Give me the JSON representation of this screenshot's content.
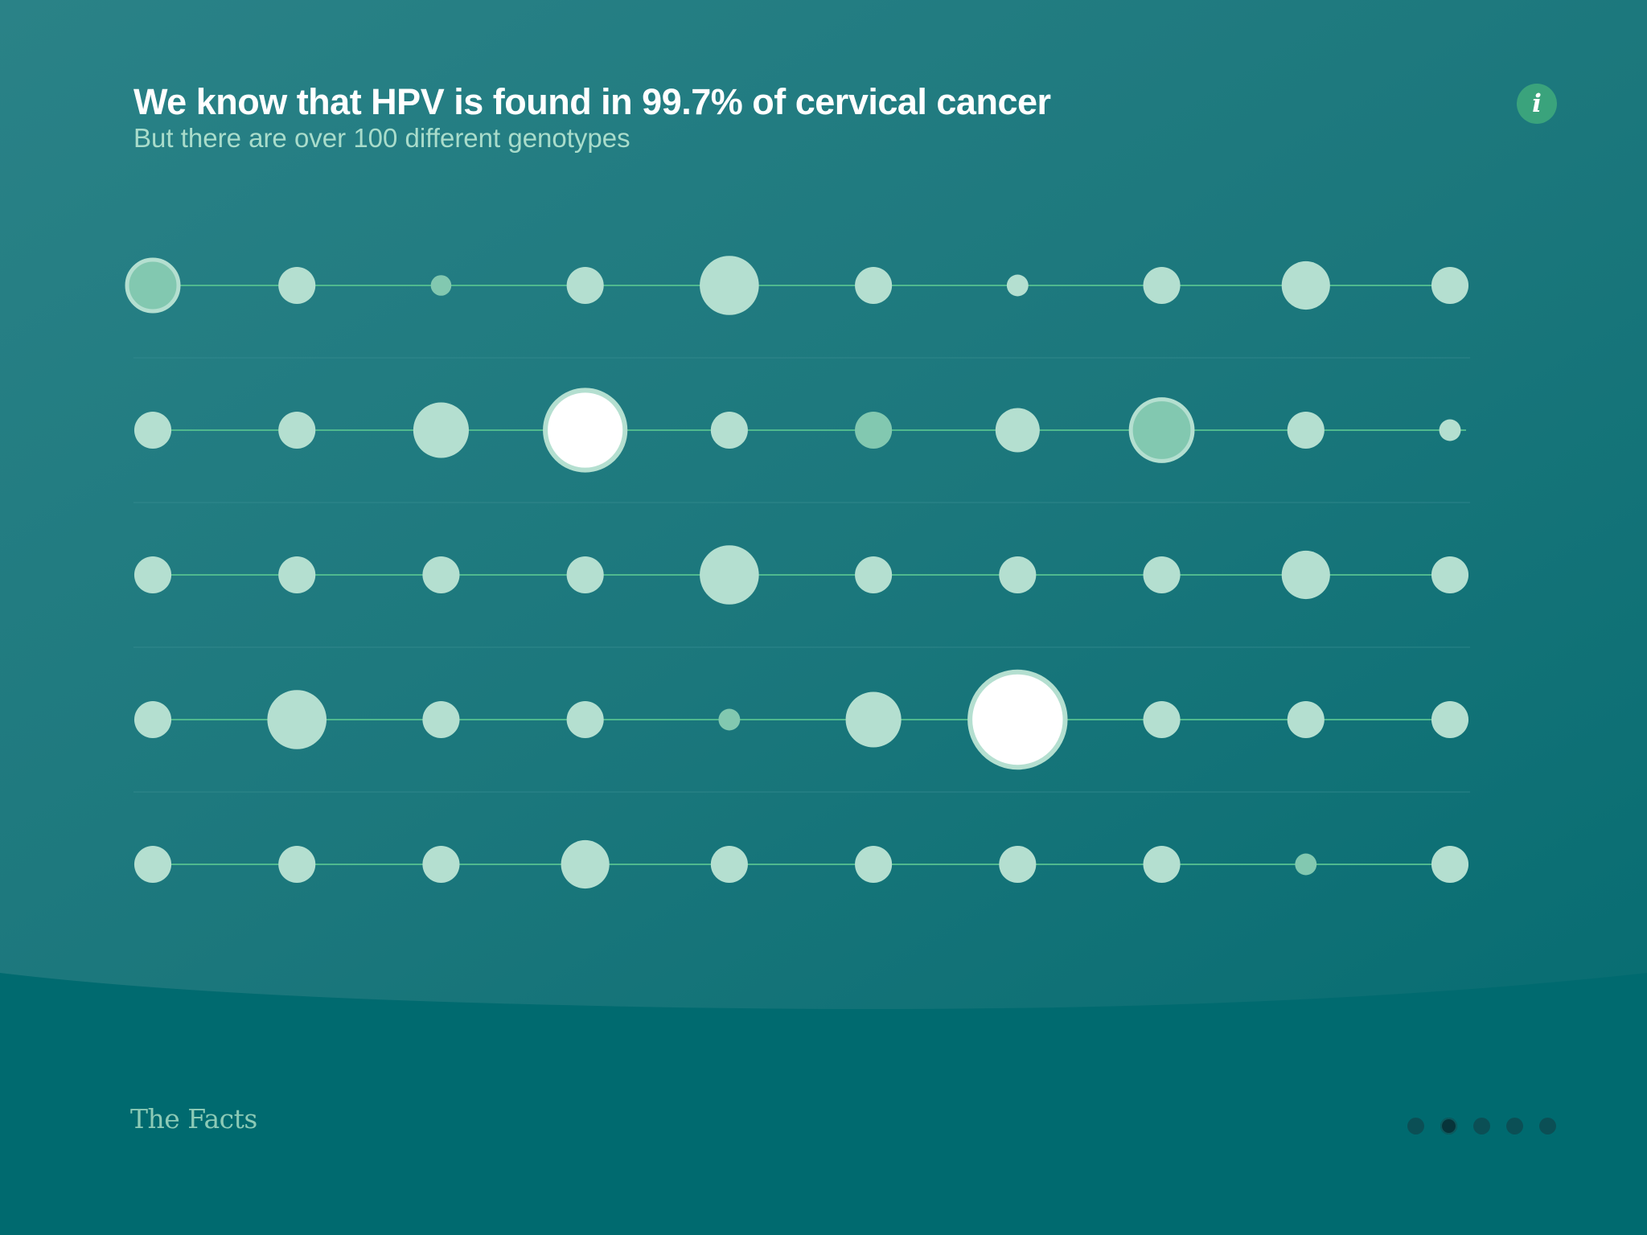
{
  "header": {
    "title": "We know that HPV is found in 99.7% of cervical cancer",
    "subtitle": "But there are over 100 different genotypes"
  },
  "info_button": {
    "icon": "info-icon",
    "glyph": "i"
  },
  "footer": {
    "brand": "The Facts"
  },
  "pager": {
    "count": 5,
    "active_index": 1
  },
  "colors": {
    "background_top": "#267f85",
    "background_bottom": "#006a6f",
    "dot": "#b4dfd0",
    "dot_accent": "#82c8b0",
    "dot_highlight": "#ffffff",
    "line": "#4fb98e",
    "info_button": "#3aa37c"
  },
  "chart_data": {
    "type": "scatter",
    "title": "",
    "xlabel": "",
    "ylabel": "",
    "rows": 5,
    "columns": 10,
    "grid": false,
    "kinds": {
      "n": "plain",
      "a": "accent",
      "ar": "accent-ringed",
      "h": "highlight"
    },
    "sizes": [
      [
        1.0,
        0.72,
        0.4,
        0.72,
        1.15,
        0.72,
        0.42,
        0.72,
        0.94,
        0.72
      ],
      [
        0.72,
        0.72,
        1.08,
        1.55,
        0.72,
        0.72,
        0.86,
        1.2,
        0.72,
        0.42
      ],
      [
        0.72,
        0.72,
        0.72,
        0.72,
        1.15,
        0.72,
        0.72,
        0.72,
        0.94,
        0.72
      ],
      [
        0.72,
        1.15,
        0.72,
        0.72,
        0.42,
        1.08,
        1.85,
        0.72,
        0.72,
        0.72
      ],
      [
        0.72,
        0.72,
        0.72,
        0.94,
        0.72,
        0.72,
        0.72,
        0.72,
        0.42,
        0.72
      ]
    ],
    "kind_grid": [
      [
        "ar",
        "n",
        "a",
        "n",
        "n",
        "n",
        "n",
        "n",
        "n",
        "n"
      ],
      [
        "n",
        "n",
        "n",
        "h",
        "n",
        "a",
        "n",
        "ar",
        "n",
        "n"
      ],
      [
        "n",
        "n",
        "n",
        "n",
        "n",
        "n",
        "n",
        "n",
        "n",
        "n"
      ],
      [
        "n",
        "n",
        "n",
        "n",
        "a",
        "n",
        "h",
        "n",
        "n",
        "n"
      ],
      [
        "n",
        "n",
        "n",
        "n",
        "n",
        "n",
        "n",
        "n",
        "a",
        "n"
      ]
    ]
  }
}
